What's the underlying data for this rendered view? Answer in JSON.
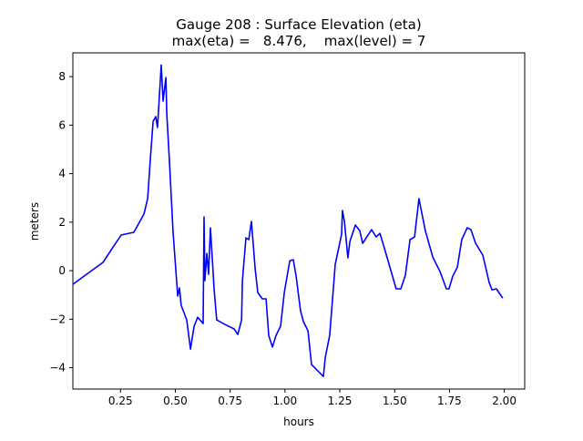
{
  "chart_data": {
    "type": "line",
    "title": "Gauge 208 : Surface Elevation (eta)",
    "subtitle": "max(eta) =   8.476,    max(level) = 7",
    "xlabel": "hours",
    "ylabel": "meters",
    "xlim": [
      0.033,
      2.093
    ],
    "ylim": [
      -4.88,
      8.98
    ],
    "xticks": [
      0.25,
      0.5,
      0.75,
      1.0,
      1.25,
      1.5,
      1.75,
      2.0
    ],
    "xtick_labels": [
      "0.25",
      "0.50",
      "0.75",
      "1.00",
      "1.25",
      "1.50",
      "1.75",
      "2.00"
    ],
    "yticks": [
      -4,
      -2,
      0,
      2,
      4,
      6,
      8
    ],
    "ytick_labels": [
      "−4",
      "−2",
      "0",
      "2",
      "4",
      "6",
      "8"
    ],
    "grid": false,
    "series": [
      {
        "name": "eta",
        "color": "#0000ff",
        "x": [
          0.033,
          0.17,
          0.253,
          0.311,
          0.357,
          0.374,
          0.386,
          0.399,
          0.411,
          0.419,
          0.436,
          0.444,
          0.457,
          0.461,
          0.473,
          0.49,
          0.511,
          0.519,
          0.527,
          0.552,
          0.569,
          0.586,
          0.602,
          0.627,
          0.631,
          0.635,
          0.644,
          0.652,
          0.66,
          0.677,
          0.689,
          0.727,
          0.768,
          0.785,
          0.802,
          0.806,
          0.822,
          0.835,
          0.847,
          0.864,
          0.876,
          0.897,
          0.914,
          0.926,
          0.943,
          0.959,
          0.98,
          0.997,
          1.022,
          1.038,
          1.051,
          1.071,
          1.084,
          1.105,
          1.121,
          1.154,
          1.175,
          1.184,
          1.204,
          1.229,
          1.258,
          1.262,
          1.271,
          1.287,
          1.296,
          1.321,
          1.341,
          1.354,
          1.395,
          1.416,
          1.433,
          1.453,
          1.507,
          1.528,
          1.549,
          1.57,
          1.591,
          1.611,
          1.64,
          1.674,
          1.707,
          1.736,
          1.748,
          1.765,
          1.786,
          1.806,
          1.831,
          1.848,
          1.869,
          1.902,
          1.931,
          1.944,
          1.964,
          1.993
        ],
        "y": [
          -0.56,
          0.34,
          1.47,
          1.58,
          2.33,
          2.97,
          4.58,
          6.16,
          6.35,
          5.9,
          8.48,
          6.99,
          7.96,
          6.46,
          4.58,
          1.58,
          -1.05,
          -0.71,
          -1.43,
          -2.03,
          -3.23,
          -2.29,
          -1.92,
          -2.18,
          2.22,
          -0.41,
          0.71,
          -0.15,
          1.77,
          -0.79,
          -2.03,
          -2.22,
          -2.4,
          -2.63,
          -2.03,
          -0.41,
          1.35,
          1.28,
          2.03,
          0.08,
          -0.9,
          -1.16,
          -1.16,
          -2.67,
          -3.15,
          -2.67,
          -2.29,
          -0.9,
          0.41,
          0.45,
          -0.23,
          -1.65,
          -2.1,
          -2.48,
          -3.87,
          -4.17,
          -4.36,
          -3.57,
          -2.67,
          0.26,
          1.5,
          2.48,
          2.03,
          0.53,
          1.2,
          1.88,
          1.65,
          1.13,
          1.69,
          1.39,
          1.54,
          0.94,
          -0.75,
          -0.75,
          -0.19,
          1.28,
          1.39,
          2.97,
          1.65,
          0.56,
          -0.04,
          -0.75,
          -0.75,
          -0.23,
          0.15,
          1.28,
          1.77,
          1.69,
          1.13,
          0.64,
          -0.49,
          -0.79,
          -0.75,
          -1.13
        ]
      }
    ]
  }
}
